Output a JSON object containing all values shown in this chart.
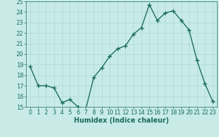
{
  "x": [
    0,
    1,
    2,
    3,
    4,
    5,
    6,
    7,
    8,
    9,
    10,
    11,
    12,
    13,
    14,
    15,
    16,
    17,
    18,
    19,
    20,
    21,
    22,
    23
  ],
  "y": [
    18.8,
    17.0,
    17.0,
    16.8,
    15.4,
    15.7,
    15.0,
    14.8,
    17.8,
    18.7,
    19.8,
    20.5,
    20.8,
    21.9,
    22.5,
    24.7,
    23.2,
    23.9,
    24.1,
    23.2,
    22.3,
    19.4,
    17.2,
    15.5
  ],
  "line_color": "#1a6b5a",
  "marker": "+",
  "marker_size": 4,
  "marker_lw": 1.0,
  "line_width": 1.0,
  "bg_color": "#c8ebe8",
  "grid_color": "#a8d8d4",
  "tick_color": "#1a6b5a",
  "label_color": "#1a6b5a",
  "xlabel": "Humidex (Indice chaleur)",
  "ylim": [
    15,
    25
  ],
  "xlim": [
    -0.5,
    23.5
  ],
  "yticks": [
    15,
    16,
    17,
    18,
    19,
    20,
    21,
    22,
    23,
    24,
    25
  ],
  "xticks": [
    0,
    1,
    2,
    3,
    4,
    5,
    6,
    7,
    8,
    9,
    10,
    11,
    12,
    13,
    14,
    15,
    16,
    17,
    18,
    19,
    20,
    21,
    22,
    23
  ],
  "tick_fontsize": 6,
  "xlabel_fontsize": 7
}
